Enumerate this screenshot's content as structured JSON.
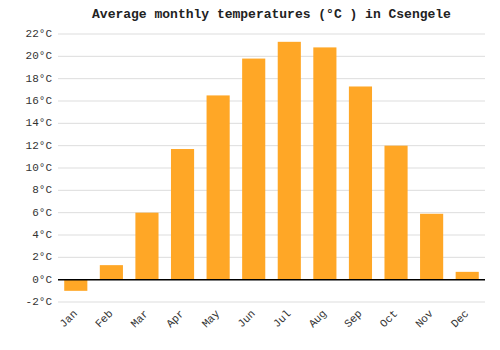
{
  "chart_data": {
    "type": "bar",
    "title": "Average monthly temperatures (°C ) in Csengele",
    "categories": [
      "Jan",
      "Feb",
      "Mar",
      "Apr",
      "May",
      "Jun",
      "Jul",
      "Aug",
      "Sep",
      "Oct",
      "Nov",
      "Dec"
    ],
    "values": [
      -1.0,
      1.3,
      6.0,
      11.7,
      16.5,
      19.8,
      21.3,
      20.8,
      17.3,
      12.0,
      5.9,
      0.7
    ],
    "color": "#FFA726",
    "ylim": [
      -2,
      22
    ],
    "yticks": [
      {
        "value": -2,
        "label": "-2°C"
      },
      {
        "value": 0,
        "label": "0°C"
      },
      {
        "value": 2,
        "label": "2°C"
      },
      {
        "value": 4,
        "label": "4°C"
      },
      {
        "value": 6,
        "label": "6°C"
      },
      {
        "value": 8,
        "label": "8°C"
      },
      {
        "value": 10,
        "label": "10°C"
      },
      {
        "value": 12,
        "label": "12°C"
      },
      {
        "value": 14,
        "label": "14°C"
      },
      {
        "value": 16,
        "label": "16°C"
      },
      {
        "value": 18,
        "label": "18°C"
      },
      {
        "value": 20,
        "label": "20°C"
      },
      {
        "value": 22,
        "label": "22°C"
      }
    ],
    "grid": true
  }
}
